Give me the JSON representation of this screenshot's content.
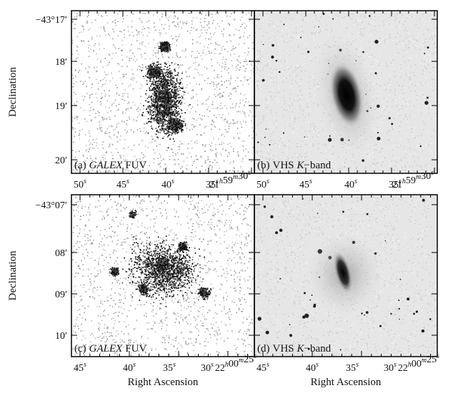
{
  "rows": [
    {
      "y_axis_label": "Declination",
      "y_ticks": [
        "−43°17′",
        "18′",
        "19′",
        "20′"
      ],
      "x_ticks": [
        [
          {
            "text": "50",
            "sup": "s"
          }
        ],
        [
          {
            "text": "45",
            "sup": "s"
          }
        ],
        [
          {
            "text": "40",
            "sup": "s"
          }
        ],
        [
          {
            "text": "35",
            "sup": "s"
          }
        ],
        [
          {
            "text": "21",
            "sup": "h"
          },
          {
            "text": "59",
            "sup": "m"
          },
          {
            "text": "30",
            "sup": "s"
          }
        ]
      ],
      "panels": [
        {
          "label": [
            {
              "text": "(a)"
            },
            {
              "text": "GALEX",
              "italic": true
            },
            {
              "text": "FUV"
            }
          ]
        },
        {
          "label": [
            {
              "text": "(b)"
            },
            {
              "text": "VHS"
            },
            {
              "text": "K",
              "italic": true
            },
            {
              "text": "−band"
            }
          ]
        }
      ]
    },
    {
      "y_axis_label": "Declination",
      "y_ticks": [
        "−43°07′",
        "08′",
        "09′",
        "10′"
      ],
      "x_ticks": [
        [
          {
            "text": "45",
            "sup": "s"
          }
        ],
        [
          {
            "text": "40",
            "sup": "s"
          }
        ],
        [
          {
            "text": "35",
            "sup": "s"
          }
        ],
        [
          {
            "text": "30",
            "sup": "s"
          }
        ],
        [
          {
            "text": "22",
            "sup": "h"
          },
          {
            "text": "00",
            "sup": "m"
          },
          {
            "text": "25",
            "sup": "s"
          }
        ]
      ],
      "x_axis_label": "Right Ascension",
      "panels": [
        {
          "label": [
            {
              "text": "(c)"
            },
            {
              "text": "GALEX",
              "italic": true
            },
            {
              "text": "FUV"
            }
          ]
        },
        {
          "label": [
            {
              "text": "(d)"
            },
            {
              "text": "VHS"
            },
            {
              "text": "K",
              "italic": true
            },
            {
              "text": "−band"
            }
          ]
        }
      ]
    }
  ]
}
